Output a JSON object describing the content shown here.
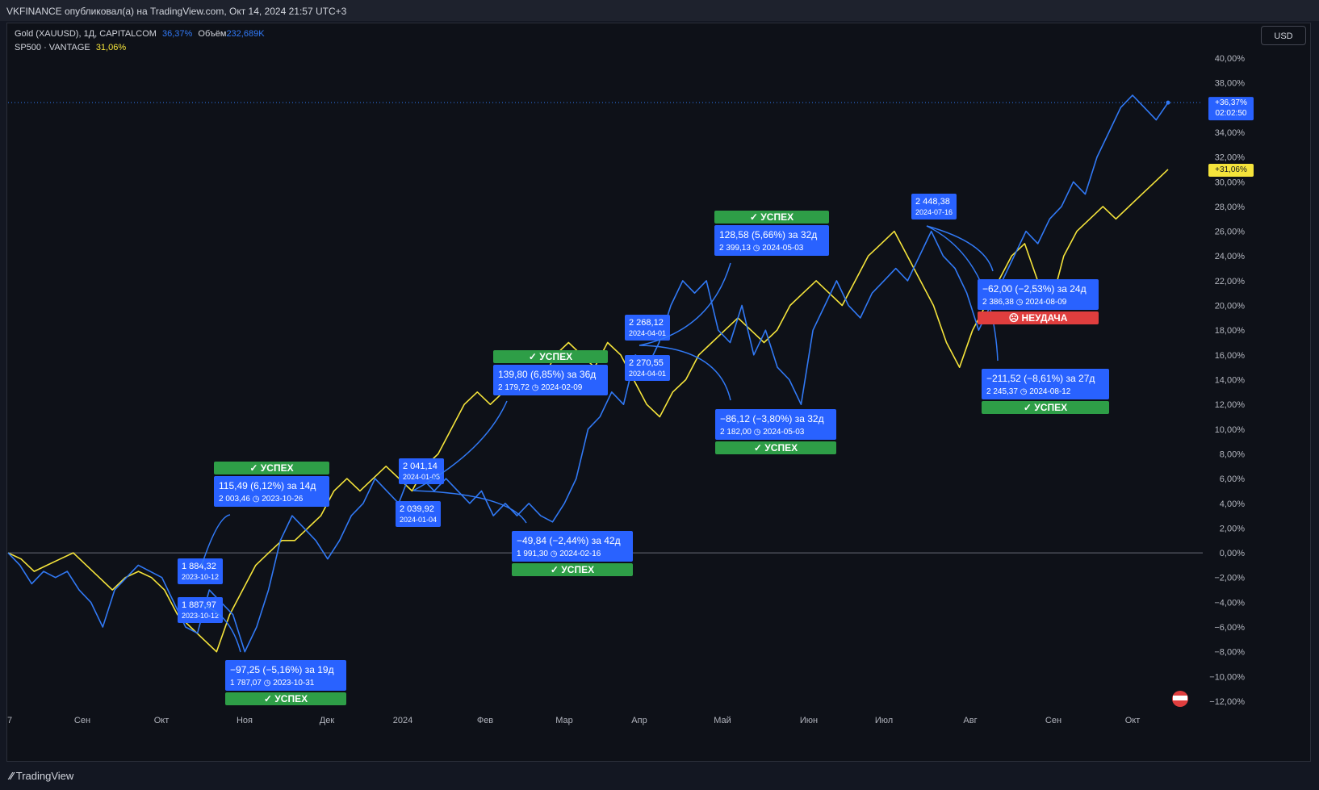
{
  "header": {
    "text": "VKFINANCE опубликовал(а) на TradingView.com, Окт 14, 2024 21:57 UTC+3"
  },
  "legend": {
    "gold": {
      "symbol": "Gold (XAUUSD), 1Д, CAPITALCOM",
      "change": "36,37%",
      "volume_label": "Объём",
      "volume_value": "232,689K"
    },
    "sp500": {
      "symbol": "SP500 · VANTAGE",
      "change": "31,06%"
    }
  },
  "currency_button": "USD",
  "footer": {
    "brand": "TradingView"
  },
  "colors": {
    "gold_line": "#3179f5",
    "sp500_line": "#f5e43b",
    "success": "#2e9e47",
    "fail": "#e03e3e",
    "label_bg": "#2962ff"
  },
  "chart_data": {
    "type": "line",
    "x_axis_labels": [
      "7",
      "Сен",
      "Окт",
      "Ноя",
      "Дек",
      "2024",
      "Фев",
      "Мар",
      "Апр",
      "Май",
      "Июн",
      "Июл",
      "Авг",
      "Сен",
      "Окт"
    ],
    "y_axis": {
      "unit": "%",
      "range": [
        -12,
        40
      ],
      "ticks": [
        "40,00%",
        "38,00%",
        "36,00%",
        "34,00%",
        "32,00%",
        "30,00%",
        "28,00%",
        "26,00%",
        "24,00%",
        "22,00%",
        "20,00%",
        "18,00%",
        "16,00%",
        "14,00%",
        "12,00%",
        "10,00%",
        "8,00%",
        "6,00%",
        "4,00%",
        "2,00%",
        "0,00%",
        "−2,00%",
        "−4,00%",
        "−6,00%",
        "−8,00%",
        "−10,00%",
        "−12,00%"
      ]
    },
    "series": [
      {
        "name": "Gold (XAUUSD)",
        "color": "#3179f5",
        "last_label": "+36,37%",
        "timer": "02:02:50",
        "values": [
          0,
          -1,
          -2.5,
          -1.5,
          -2,
          -1.5,
          -3,
          -4,
          -6,
          -3,
          -2,
          -1,
          -1.5,
          -2,
          -4,
          -6,
          -6.5,
          -3,
          -4,
          -5,
          -8,
          -6,
          -3,
          1,
          3,
          2,
          1,
          -0.5,
          1,
          3,
          4,
          6,
          5,
          4,
          6.5,
          6,
          5,
          6,
          5,
          4,
          5,
          3,
          4,
          3,
          4,
          3,
          2.5,
          4,
          6,
          10,
          11,
          13,
          12,
          16,
          15,
          17,
          20,
          22,
          21,
          22,
          18,
          17,
          20,
          16,
          18,
          15,
          14,
          12,
          18,
          20,
          22,
          20,
          19,
          21,
          22,
          23,
          22,
          24,
          26,
          24,
          23,
          21,
          18,
          20,
          22,
          24,
          26,
          25,
          27,
          28,
          30,
          29,
          32,
          34,
          36,
          37,
          36,
          35,
          36.4
        ]
      },
      {
        "name": "SP500",
        "color": "#f5e43b",
        "last_label": "+31,06%",
        "values": [
          0,
          -0.5,
          -1.5,
          -1,
          -0.5,
          0,
          -1,
          -2,
          -3,
          -2,
          -1.5,
          -2,
          -3,
          -5,
          -6,
          -7,
          -8,
          -5,
          -3,
          -1,
          0,
          1,
          1,
          2,
          3,
          5,
          6,
          5,
          6,
          7,
          6,
          5,
          7,
          8,
          10,
          12,
          13,
          12,
          13,
          14,
          15,
          14,
          16,
          17,
          16,
          15,
          17,
          16,
          14,
          12,
          11,
          13,
          14,
          16,
          17,
          18,
          19,
          18,
          17,
          18,
          20,
          21,
          22,
          21,
          20,
          22,
          24,
          25,
          26,
          24,
          22,
          20,
          17,
          15,
          18,
          20,
          22,
          24,
          25,
          22,
          20,
          24,
          26,
          27,
          28,
          27,
          28,
          29,
          30,
          31
        ]
      }
    ],
    "annotations": [
      {
        "text": "115,49 (6,12%) за 14д",
        "sub": "2 003,46 ◷ 2023-10-26",
        "badge": "✓ УСПЕХ"
      },
      {
        "text": "−97,25 (−5,16%) за 19д",
        "sub": "1 787,07 ◷ 2023-10-31",
        "badge": "✓ УСПЕХ"
      },
      {
        "text": "139,80 (6,85%) за 36д",
        "sub": "2 179,72 ◷ 2024-02-09",
        "badge": "✓ УСПЕХ"
      },
      {
        "text": "−49,84 (−2,44%) за 42д",
        "sub": "1 991,30 ◷ 2024-02-16",
        "badge": "✓ УСПЕХ"
      },
      {
        "text": "128,58 (5,66%) за 32д",
        "sub": "2 399,13 ◷ 2024-05-03",
        "badge": "✓ УСПЕХ"
      },
      {
        "text": "−86,12 (−3,80%) за 32д",
        "sub": "2 182,00 ◷ 2024-05-03",
        "badge": "✓ УСПЕХ"
      },
      {
        "text": "−62,00 (−2,53%) за 24д",
        "sub": "2 386,38 ◷ 2024-08-09",
        "badge": "☹ НЕУДАЧА"
      },
      {
        "text": "−211,52 (−8,61%) за 27д",
        "sub": "2 245,37 ◷ 2024-08-12",
        "badge": "✓ УСПЕХ"
      }
    ],
    "price_markers": [
      {
        "price": "1 884,32",
        "date": "2023-10-12"
      },
      {
        "price": "1 887,97",
        "date": "2023-10-12"
      },
      {
        "price": "2 041,14",
        "date": "2024-01-05"
      },
      {
        "price": "2 039,92",
        "date": "2024-01-04"
      },
      {
        "price": "2 268,12",
        "date": "2024-04-01"
      },
      {
        "price": "2 270,55",
        "date": "2024-04-01"
      },
      {
        "price": "2 448,38",
        "date": "2024-07-16"
      }
    ]
  }
}
